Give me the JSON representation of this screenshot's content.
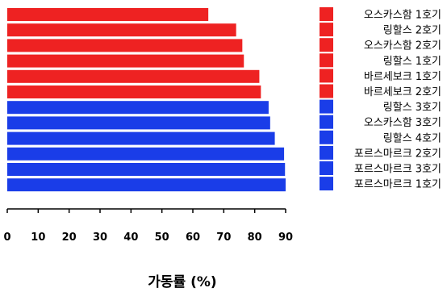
{
  "chart_data": {
    "type": "bar",
    "orientation": "horizontal",
    "xlabel": "가동률 (%)",
    "ylabel": "",
    "xlim": [
      0,
      90
    ],
    "xticks": [
      0,
      10,
      20,
      30,
      40,
      50,
      60,
      70,
      80,
      90
    ],
    "grid": false,
    "legend_position": "right",
    "categories": [
      "오스카스함 1호기",
      "링할스 2호기",
      "오스카스함 2호기",
      "링할스 1호기",
      "바르세보크 1호기",
      "바르세보크 2호기",
      "링할스 3호기",
      "오스카스함 3호기",
      "링할스 4호기",
      "포르스마르크 2호기",
      "포르스마르크 3호기",
      "포르스마르크 1호기"
    ],
    "values": [
      65,
      74,
      76,
      76.5,
      81.5,
      82,
      84.5,
      85,
      86.5,
      89.5,
      89.8,
      90
    ],
    "colors": [
      "#ee2222",
      "#ee2222",
      "#ee2222",
      "#ee2222",
      "#ee2222",
      "#ee2222",
      "#1a3de8",
      "#1a3de8",
      "#1a3de8",
      "#1a3de8",
      "#1a3de8",
      "#1a3de8"
    ]
  }
}
